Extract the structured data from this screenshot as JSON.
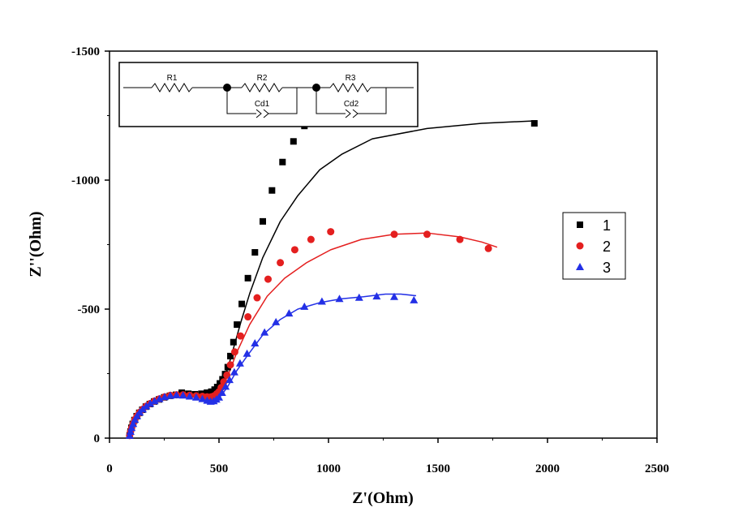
{
  "chart_data": {
    "type": "scatter",
    "title": "",
    "xlabel": "Z'(Ohm)",
    "ylabel": "Z''(Ohm)",
    "xlim": [
      0,
      2500
    ],
    "ylim": [
      0,
      -1500
    ],
    "x_ticks": [
      "0",
      "500",
      "1000",
      "1500",
      "2000",
      "2500"
    ],
    "y_ticks": [
      "0",
      "-500",
      "-1000",
      "-1500"
    ],
    "legend_position": "right",
    "grid": false,
    "series": [
      {
        "name": "1",
        "color": "#000000",
        "marker": "square",
        "points": [
          [
            92,
            -10
          ],
          [
            96,
            -25
          ],
          [
            100,
            -40
          ],
          [
            106,
            -55
          ],
          [
            114,
            -70
          ],
          [
            124,
            -85
          ],
          [
            136,
            -98
          ],
          [
            150,
            -110
          ],
          [
            166,
            -122
          ],
          [
            184,
            -132
          ],
          [
            204,
            -142
          ],
          [
            226,
            -150
          ],
          [
            250,
            -158
          ],
          [
            276,
            -164
          ],
          [
            304,
            -168
          ],
          [
            330,
            -176
          ],
          [
            360,
            -172
          ],
          [
            390,
            -170
          ],
          [
            420,
            -172
          ],
          [
            445,
            -176
          ],
          [
            465,
            -180
          ],
          [
            480,
            -188
          ],
          [
            492,
            -198
          ],
          [
            504,
            -212
          ],
          [
            516,
            -228
          ],
          [
            528,
            -248
          ],
          [
            540,
            -275
          ],
          [
            552,
            -318
          ],
          [
            566,
            -372
          ],
          [
            582,
            -440
          ],
          [
            604,
            -520
          ],
          [
            632,
            -620
          ],
          [
            664,
            -720
          ],
          [
            700,
            -840
          ],
          [
            742,
            -960
          ],
          [
            790,
            -1070
          ],
          [
            840,
            -1150
          ],
          [
            890,
            -1210
          ],
          [
            1940,
            -1220
          ]
        ],
        "fit": [
          [
            92,
            -5
          ],
          [
            100,
            -38
          ],
          [
            120,
            -80
          ],
          [
            160,
            -118
          ],
          [
            220,
            -148
          ],
          [
            300,
            -166
          ],
          [
            380,
            -168
          ],
          [
            440,
            -168
          ],
          [
            480,
            -182
          ],
          [
            510,
            -210
          ],
          [
            540,
            -270
          ],
          [
            570,
            -360
          ],
          [
            600,
            -450
          ],
          [
            640,
            -560
          ],
          [
            700,
            -700
          ],
          [
            780,
            -840
          ],
          [
            860,
            -940
          ],
          [
            960,
            -1040
          ],
          [
            1060,
            -1100
          ],
          [
            1200,
            -1160
          ],
          [
            1450,
            -1200
          ],
          [
            1700,
            -1220
          ],
          [
            1950,
            -1230
          ]
        ]
      },
      {
        "name": "2",
        "color": "#e41f1f",
        "marker": "circle",
        "points": [
          [
            92,
            -10
          ],
          [
            96,
            -25
          ],
          [
            101,
            -40
          ],
          [
            108,
            -56
          ],
          [
            116,
            -72
          ],
          [
            126,
            -86
          ],
          [
            138,
            -100
          ],
          [
            152,
            -112
          ],
          [
            168,
            -124
          ],
          [
            186,
            -134
          ],
          [
            206,
            -144
          ],
          [
            228,
            -152
          ],
          [
            252,
            -160
          ],
          [
            278,
            -166
          ],
          [
            306,
            -168
          ],
          [
            336,
            -168
          ],
          [
            366,
            -166
          ],
          [
            396,
            -164
          ],
          [
            424,
            -162
          ],
          [
            446,
            -160
          ],
          [
            464,
            -160
          ],
          [
            478,
            -164
          ],
          [
            490,
            -172
          ],
          [
            500,
            -180
          ],
          [
            510,
            -196
          ],
          [
            522,
            -218
          ],
          [
            536,
            -244
          ],
          [
            552,
            -284
          ],
          [
            572,
            -334
          ],
          [
            598,
            -396
          ],
          [
            632,
            -470
          ],
          [
            674,
            -544
          ],
          [
            724,
            -616
          ],
          [
            780,
            -680
          ],
          [
            846,
            -730
          ],
          [
            920,
            -770
          ],
          [
            1010,
            -800
          ],
          [
            1300,
            -790
          ],
          [
            1450,
            -790
          ],
          [
            1600,
            -770
          ],
          [
            1730,
            -735
          ]
        ],
        "fit": [
          [
            92,
            -5
          ],
          [
            100,
            -38
          ],
          [
            120,
            -82
          ],
          [
            160,
            -120
          ],
          [
            220,
            -150
          ],
          [
            300,
            -168
          ],
          [
            380,
            -166
          ],
          [
            440,
            -160
          ],
          [
            480,
            -164
          ],
          [
            510,
            -190
          ],
          [
            540,
            -240
          ],
          [
            580,
            -330
          ],
          [
            640,
            -440
          ],
          [
            720,
            -550
          ],
          [
            800,
            -620
          ],
          [
            900,
            -680
          ],
          [
            1010,
            -730
          ],
          [
            1150,
            -770
          ],
          [
            1300,
            -790
          ],
          [
            1450,
            -795
          ],
          [
            1600,
            -780
          ],
          [
            1700,
            -760
          ],
          [
            1770,
            -740
          ]
        ]
      },
      {
        "name": "3",
        "color": "#2330e6",
        "marker": "triangle",
        "points": [
          [
            92,
            -10
          ],
          [
            96,
            -25
          ],
          [
            101,
            -40
          ],
          [
            108,
            -56
          ],
          [
            116,
            -72
          ],
          [
            126,
            -86
          ],
          [
            138,
            -100
          ],
          [
            152,
            -112
          ],
          [
            168,
            -124
          ],
          [
            186,
            -134
          ],
          [
            206,
            -144
          ],
          [
            228,
            -152
          ],
          [
            252,
            -160
          ],
          [
            278,
            -165
          ],
          [
            306,
            -167
          ],
          [
            336,
            -166
          ],
          [
            366,
            -162
          ],
          [
            396,
            -158
          ],
          [
            424,
            -152
          ],
          [
            446,
            -146
          ],
          [
            462,
            -142
          ],
          [
            476,
            -144
          ],
          [
            488,
            -150
          ],
          [
            500,
            -158
          ],
          [
            514,
            -176
          ],
          [
            530,
            -200
          ],
          [
            548,
            -226
          ],
          [
            570,
            -256
          ],
          [
            596,
            -290
          ],
          [
            628,
            -328
          ],
          [
            664,
            -368
          ],
          [
            708,
            -410
          ],
          [
            760,
            -450
          ],
          [
            820,
            -484
          ],
          [
            890,
            -510
          ],
          [
            970,
            -530
          ],
          [
            1050,
            -540
          ],
          [
            1140,
            -545
          ],
          [
            1220,
            -550
          ],
          [
            1300,
            -548
          ],
          [
            1390,
            -535
          ]
        ],
        "fit": [
          [
            92,
            -5
          ],
          [
            100,
            -38
          ],
          [
            120,
            -82
          ],
          [
            160,
            -120
          ],
          [
            220,
            -150
          ],
          [
            300,
            -166
          ],
          [
            380,
            -162
          ],
          [
            440,
            -148
          ],
          [
            480,
            -146
          ],
          [
            510,
            -165
          ],
          [
            540,
            -200
          ],
          [
            580,
            -260
          ],
          [
            630,
            -320
          ],
          [
            700,
            -400
          ],
          [
            780,
            -460
          ],
          [
            860,
            -500
          ],
          [
            960,
            -525
          ],
          [
            1060,
            -540
          ],
          [
            1160,
            -548
          ],
          [
            1260,
            -558
          ],
          [
            1330,
            -558
          ],
          [
            1400,
            -552
          ]
        ]
      }
    ]
  },
  "inset": {
    "labels": [
      "R1",
      "R2",
      "Cd1",
      "R3",
      "Cd2"
    ]
  }
}
